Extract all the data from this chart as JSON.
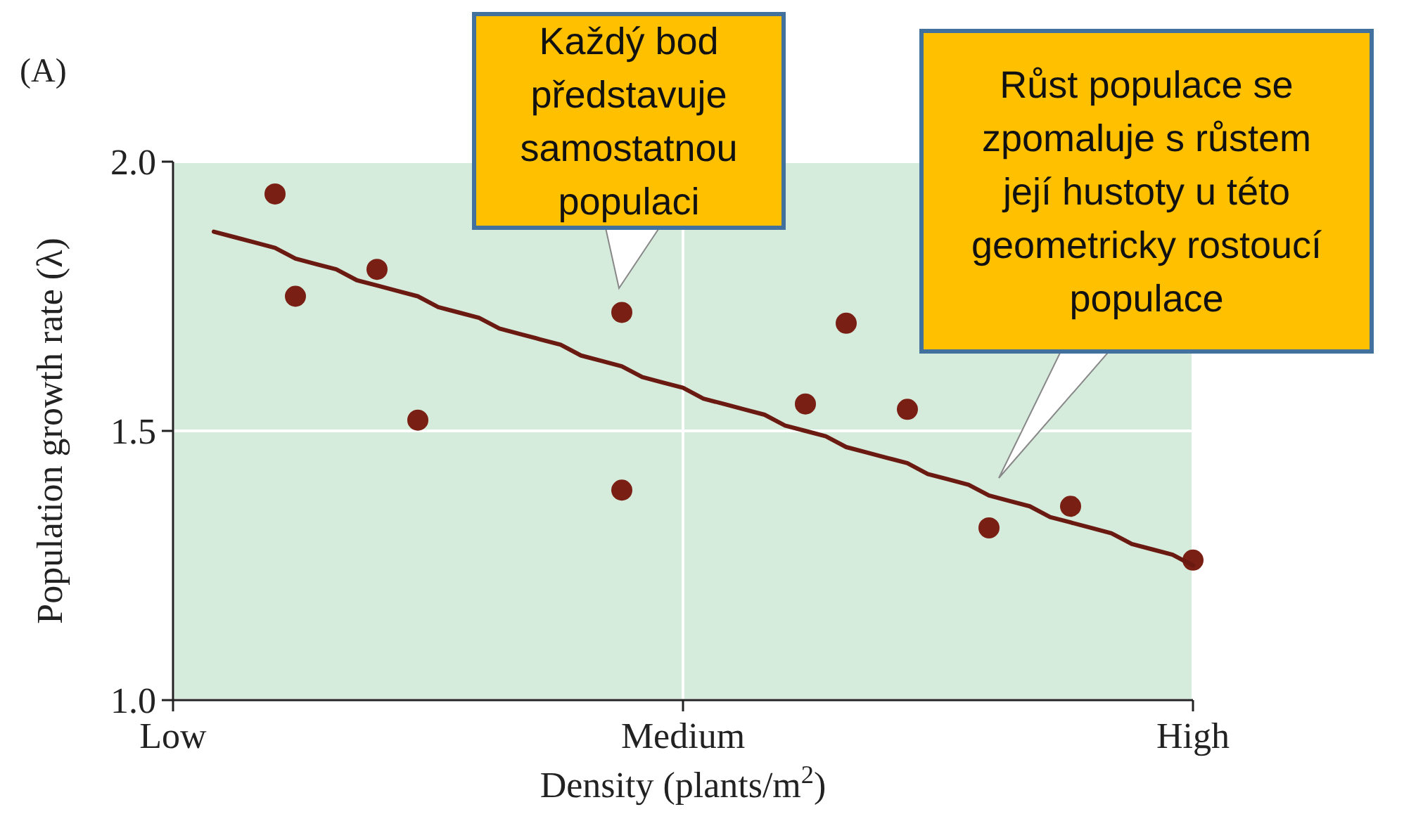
{
  "chart_data": {
    "type": "scatter",
    "title": "(A)",
    "xlabel": "Density (plants/m$^{2}$)",
    "ylabel": "Population growth rate (λ)",
    "categories": [
      "Low",
      null,
      null,
      null,
      null,
      null,
      null,
      null,
      null,
      null,
      null,
      null,
      null,
      null,
      null,
      null,
      null,
      null,
      null,
      null,
      null,
      null,
      null,
      null,
      null,
      "Medium",
      null,
      null,
      null,
      null,
      null,
      null,
      null,
      null,
      null,
      null,
      null,
      null,
      null,
      null,
      null,
      null,
      null,
      null,
      null,
      null,
      null,
      null,
      null,
      null,
      "High"
    ],
    "ylim": [
      1,
      2
    ],
    "yticks": [
      {
        "value": 1,
        "label": "1.0"
      },
      1.5,
      {
        "value": 2,
        "label": "2.0"
      }
    ],
    "grid": true,
    "series": [
      {
        "color": "#7a1f14",
        "marker": "circle",
        "values": [
          null,
          null,
          null,
          null,
          null,
          1.94,
          1.75,
          null,
          null,
          null,
          1.8,
          null,
          1.52,
          null,
          null,
          null,
          null,
          null,
          null,
          null,
          null,
          null,
          1.72,
          null,
          null,
          null,
          null,
          null,
          null,
          null,
          null,
          1.55,
          null,
          1.7,
          null,
          null,
          1.54,
          null,
          null,
          null,
          1.32,
          null,
          null,
          null,
          1.36,
          null,
          null,
          null,
          null,
          null,
          1.26
        ]
      },
      {
        "color": "#7a1f14",
        "marker": "circle",
        "values": [
          null,
          null,
          null,
          null,
          null,
          null,
          null,
          null,
          null,
          null,
          null,
          null,
          null,
          null,
          null,
          null,
          null,
          null,
          null,
          null,
          null,
          null,
          1.39,
          null,
          null,
          null,
          null,
          null,
          null,
          null,
          null,
          null,
          null,
          null,
          null,
          null,
          null,
          null,
          null,
          null,
          null,
          null,
          null,
          null,
          null,
          null,
          null,
          null,
          null,
          null,
          null
        ]
      },
      {
        "type": "line",
        "color": "#6b1a12",
        "values": [
          null,
          null,
          1.87,
          1.86,
          1.85,
          1.84,
          1.82,
          1.81,
          1.8,
          1.78,
          1.77,
          1.76,
          1.75,
          1.73,
          1.72,
          1.71,
          1.69,
          1.68,
          1.67,
          1.66,
          1.64,
          1.63,
          1.62,
          1.6,
          1.59,
          1.58,
          1.56,
          1.55,
          1.54,
          1.53,
          1.51,
          1.5,
          1.49,
          1.47,
          1.46,
          1.45,
          1.44,
          1.42,
          1.41,
          1.4,
          1.38,
          1.37,
          1.36,
          1.34,
          1.33,
          1.32,
          1.31,
          1.29,
          1.28,
          1.27,
          1.25
        ]
      }
    ],
    "annotations": [
      "Každý bod představuje samostatnou populaci",
      "Růst populace se zpomaluje s růstem její hustoty u této geometricky rostoucí populace"
    ]
  }
}
